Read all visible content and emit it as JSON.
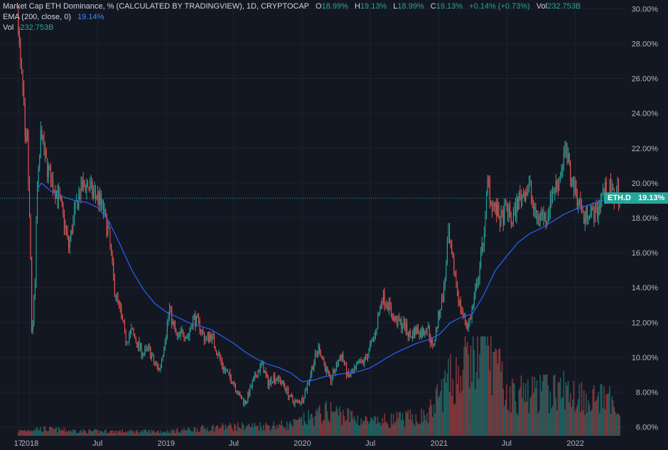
{
  "legend": {
    "title": "Market Cap ETH Dominance, % (CALCULATED BY TRADINGVIEW), 1D, CRYPTOCAP",
    "o_label": "O",
    "o_value": "18.99%",
    "h_label": "H",
    "h_value": "19.13%",
    "l_label": "L",
    "l_value": "18.99%",
    "c_label": "C",
    "c_value": "19.13%",
    "change": "+0.14% (+0.73%)",
    "vol_label": "Vol",
    "vol_value": "232.753B",
    "ema_label": "EMA (200, close, 0)",
    "ema_value": "19.14%",
    "vol2_label": "Vol",
    "vol2_value": "232.753B"
  },
  "price_tags": {
    "symbol": "ETH.D",
    "last": "19.13%"
  },
  "colors": {
    "background": "#131722",
    "up": "#26a69a",
    "down": "#ef5350",
    "ema": "#2962ff",
    "grid": "#1e222d",
    "last_line": "#26a69a"
  },
  "chart_data": {
    "type": "candlestick",
    "ylim": [
      5.5,
      30.5
    ],
    "y_ticks": [
      "30.00%",
      "28.00%",
      "26.00%",
      "24.00%",
      "22.00%",
      "20.00%",
      "18.00%",
      "16.00%",
      "14.00%",
      "12.00%",
      "10.00%",
      "8.00%",
      "6.00%"
    ],
    "y_tick_values": [
      30,
      28,
      26,
      24,
      22,
      20,
      18,
      16,
      14,
      12,
      10,
      8,
      6
    ],
    "x_ticks": [
      "17",
      "2018",
      "Jul",
      "2019",
      "Jul",
      "2020",
      "Jul",
      "2021",
      "Jul",
      "2022"
    ],
    "x_tick_dates": [
      "2017-12-01",
      "2018-01-01",
      "2018-07-01",
      "2019-01-01",
      "2019-07-01",
      "2020-01-01",
      "2020-07-01",
      "2021-01-01",
      "2021-07-01",
      "2022-01-01"
    ],
    "last_value": 19.13,
    "price_path": [
      [
        "2017-12-01",
        29.5
      ],
      [
        "2017-12-05",
        27.0
      ],
      [
        "2017-12-10",
        26.0
      ],
      [
        "2017-12-15",
        24.5
      ],
      [
        "2017-12-20",
        21.5
      ],
      [
        "2017-12-25",
        22.5
      ],
      [
        "2017-12-30",
        18.5
      ],
      [
        "2018-01-04",
        15.0
      ],
      [
        "2018-01-07",
        9.3
      ],
      [
        "2018-01-10",
        13.0
      ],
      [
        "2018-01-15",
        14.5
      ],
      [
        "2018-01-20",
        19.5
      ],
      [
        "2018-01-25",
        20.5
      ],
      [
        "2018-02-01",
        23.5
      ],
      [
        "2018-02-05",
        22.0
      ],
      [
        "2018-02-15",
        21.0
      ],
      [
        "2018-03-01",
        20.0
      ],
      [
        "2018-03-15",
        19.5
      ],
      [
        "2018-04-01",
        18.0
      ],
      [
        "2018-04-15",
        16.3
      ],
      [
        "2018-05-01",
        18.3
      ],
      [
        "2018-05-15",
        19.5
      ],
      [
        "2018-06-01",
        20.0
      ],
      [
        "2018-06-15",
        19.5
      ],
      [
        "2018-07-01",
        19.3
      ],
      [
        "2018-07-15",
        18.5
      ],
      [
        "2018-08-01",
        17.0
      ],
      [
        "2018-08-15",
        14.0
      ],
      [
        "2018-09-01",
        12.5
      ],
      [
        "2018-09-15",
        11.0
      ],
      [
        "2018-10-01",
        11.5
      ],
      [
        "2018-10-15",
        10.8
      ],
      [
        "2018-11-01",
        10.2
      ],
      [
        "2018-11-15",
        10.5
      ],
      [
        "2018-12-01",
        9.6
      ],
      [
        "2018-12-15",
        9.3
      ],
      [
        "2019-01-01",
        11.5
      ],
      [
        "2019-01-10",
        12.8
      ],
      [
        "2019-01-20",
        11.8
      ],
      [
        "2019-02-01",
        11.0
      ],
      [
        "2019-02-15",
        11.5
      ],
      [
        "2019-03-01",
        11.2
      ],
      [
        "2019-03-15",
        12.3
      ],
      [
        "2019-04-01",
        11.8
      ],
      [
        "2019-04-15",
        11.0
      ],
      [
        "2019-05-01",
        11.3
      ],
      [
        "2019-05-15",
        10.5
      ],
      [
        "2019-06-01",
        9.5
      ],
      [
        "2019-06-15",
        9.0
      ],
      [
        "2019-07-01",
        8.6
      ],
      [
        "2019-07-15",
        7.8
      ],
      [
        "2019-08-01",
        7.4
      ],
      [
        "2019-08-15",
        8.2
      ],
      [
        "2019-09-01",
        9.1
      ],
      [
        "2019-09-15",
        9.6
      ],
      [
        "2019-10-01",
        8.5
      ],
      [
        "2019-10-15",
        8.9
      ],
      [
        "2019-11-01",
        8.7
      ],
      [
        "2019-11-15",
        8.3
      ],
      [
        "2019-12-01",
        7.6
      ],
      [
        "2019-12-15",
        7.4
      ],
      [
        "2020-01-01",
        7.6
      ],
      [
        "2020-01-15",
        8.5
      ],
      [
        "2020-02-01",
        9.8
      ],
      [
        "2020-02-15",
        10.6
      ],
      [
        "2020-03-01",
        9.5
      ],
      [
        "2020-03-15",
        8.6
      ],
      [
        "2020-04-01",
        9.5
      ],
      [
        "2020-04-15",
        10.2
      ],
      [
        "2020-05-01",
        8.9
      ],
      [
        "2020-05-15",
        9.1
      ],
      [
        "2020-06-01",
        9.6
      ],
      [
        "2020-06-15",
        9.8
      ],
      [
        "2020-07-01",
        10.6
      ],
      [
        "2020-07-15",
        11.5
      ],
      [
        "2020-08-01",
        13.5
      ],
      [
        "2020-08-15",
        13.2
      ],
      [
        "2020-09-01",
        12.2
      ],
      [
        "2020-09-15",
        12.0
      ],
      [
        "2020-10-01",
        11.8
      ],
      [
        "2020-10-15",
        11.2
      ],
      [
        "2020-11-01",
        11.6
      ],
      [
        "2020-11-15",
        11.4
      ],
      [
        "2020-12-01",
        11.8
      ],
      [
        "2020-12-15",
        10.5
      ],
      [
        "2021-01-01",
        12.5
      ],
      [
        "2021-01-15",
        14.0
      ],
      [
        "2021-01-25",
        17.0
      ],
      [
        "2021-02-05",
        15.5
      ],
      [
        "2021-02-15",
        14.5
      ],
      [
        "2021-02-25",
        13.0
      ],
      [
        "2021-03-10",
        12.2
      ],
      [
        "2021-03-20",
        11.8
      ],
      [
        "2021-04-01",
        12.8
      ],
      [
        "2021-04-15",
        14.5
      ],
      [
        "2021-04-25",
        16.0
      ],
      [
        "2021-05-05",
        18.0
      ],
      [
        "2021-05-12",
        20.3
      ],
      [
        "2021-05-20",
        19.0
      ],
      [
        "2021-06-01",
        18.5
      ],
      [
        "2021-06-15",
        17.8
      ],
      [
        "2021-07-01",
        18.5
      ],
      [
        "2021-07-15",
        17.8
      ],
      [
        "2021-08-01",
        19.0
      ],
      [
        "2021-08-15",
        19.5
      ],
      [
        "2021-09-01",
        19.8
      ],
      [
        "2021-09-15",
        18.0
      ],
      [
        "2021-10-01",
        18.2
      ],
      [
        "2021-10-15",
        18.0
      ],
      [
        "2021-11-01",
        19.5
      ],
      [
        "2021-11-15",
        20.0
      ],
      [
        "2021-12-01",
        21.5
      ],
      [
        "2021-12-08",
        21.8
      ],
      [
        "2021-12-15",
        20.8
      ],
      [
        "2022-01-01",
        19.5
      ],
      [
        "2022-01-15",
        18.8
      ],
      [
        "2022-01-25",
        17.8
      ],
      [
        "2022-02-05",
        18.6
      ],
      [
        "2022-02-15",
        18.2
      ],
      [
        "2022-03-01",
        18.4
      ],
      [
        "2022-03-15",
        19.5
      ],
      [
        "2022-04-01",
        19.6
      ],
      [
        "2022-04-15",
        19.2
      ],
      [
        "2022-04-25",
        19.6
      ],
      [
        "2022-05-01",
        19.13
      ]
    ],
    "ema_path": [
      [
        "2018-01-20",
        19.6
      ],
      [
        "2018-02-01",
        20.0
      ],
      [
        "2018-03-01",
        19.5
      ],
      [
        "2018-04-01",
        19.2
      ],
      [
        "2018-05-01",
        19.0
      ],
      [
        "2018-06-01",
        18.9
      ],
      [
        "2018-07-01",
        18.6
      ],
      [
        "2018-08-01",
        17.8
      ],
      [
        "2018-09-01",
        16.4
      ],
      [
        "2018-10-01",
        15.0
      ],
      [
        "2018-11-01",
        13.9
      ],
      [
        "2018-12-01",
        13.1
      ],
      [
        "2019-01-01",
        12.6
      ],
      [
        "2019-02-01",
        12.3
      ],
      [
        "2019-03-01",
        12.0
      ],
      [
        "2019-04-01",
        11.8
      ],
      [
        "2019-05-01",
        11.6
      ],
      [
        "2019-06-01",
        11.2
      ],
      [
        "2019-07-01",
        10.8
      ],
      [
        "2019-08-01",
        10.3
      ],
      [
        "2019-09-01",
        9.9
      ],
      [
        "2019-10-01",
        9.6
      ],
      [
        "2019-11-01",
        9.4
      ],
      [
        "2019-12-01",
        9.1
      ],
      [
        "2020-01-01",
        8.6
      ],
      [
        "2020-02-01",
        8.7
      ],
      [
        "2020-03-01",
        8.9
      ],
      [
        "2020-04-01",
        9.0
      ],
      [
        "2020-05-01",
        9.1
      ],
      [
        "2020-06-01",
        9.2
      ],
      [
        "2020-07-01",
        9.4
      ],
      [
        "2020-08-01",
        9.8
      ],
      [
        "2020-09-01",
        10.2
      ],
      [
        "2020-10-01",
        10.5
      ],
      [
        "2020-11-01",
        10.8
      ],
      [
        "2020-12-01",
        11.0
      ],
      [
        "2021-01-01",
        11.3
      ],
      [
        "2021-02-01",
        12.0
      ],
      [
        "2021-03-01",
        12.3
      ],
      [
        "2021-04-01",
        12.5
      ],
      [
        "2021-05-01",
        13.6
      ],
      [
        "2021-06-01",
        15.0
      ],
      [
        "2021-07-01",
        15.8
      ],
      [
        "2021-08-01",
        16.6
      ],
      [
        "2021-09-01",
        17.1
      ],
      [
        "2021-10-01",
        17.4
      ],
      [
        "2021-11-01",
        17.8
      ],
      [
        "2021-12-01",
        18.2
      ],
      [
        "2022-01-01",
        18.5
      ],
      [
        "2022-02-01",
        18.7
      ],
      [
        "2022-03-01",
        18.9
      ],
      [
        "2022-04-01",
        19.1
      ],
      [
        "2022-05-01",
        19.14
      ]
    ],
    "volume_path": [
      [
        "2017-12-01",
        0.05
      ],
      [
        "2018-01-15",
        0.08
      ],
      [
        "2018-06-01",
        0.05
      ],
      [
        "2019-01-01",
        0.05
      ],
      [
        "2019-06-01",
        0.1
      ],
      [
        "2019-12-01",
        0.12
      ],
      [
        "2020-03-15",
        0.28
      ],
      [
        "2020-07-01",
        0.15
      ],
      [
        "2020-12-01",
        0.22
      ],
      [
        "2021-01-15",
        0.55
      ],
      [
        "2021-05-15",
        1.0
      ],
      [
        "2021-07-01",
        0.45
      ],
      [
        "2021-12-01",
        0.5
      ],
      [
        "2022-05-01",
        0.35
      ]
    ]
  }
}
